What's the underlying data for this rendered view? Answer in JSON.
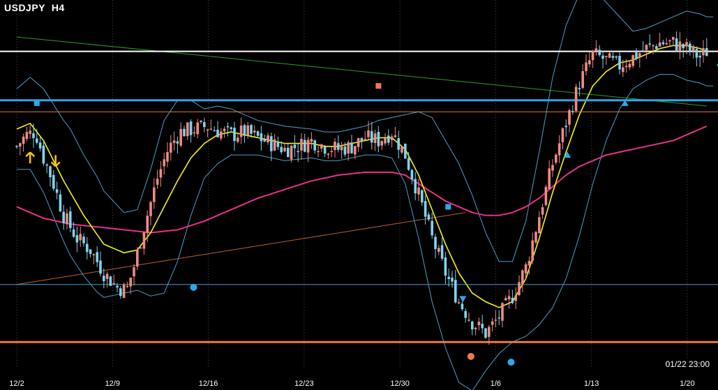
{
  "header": {
    "symbol": "USDJPY",
    "timeframe": "H4"
  },
  "status": {
    "timestamp": "01/22 23:00"
  },
  "colors": {
    "background": "#000000",
    "bull": "#f08a84",
    "bear": "#7fd4ec",
    "upper_line": "#ffffff",
    "blue_line": "#2aa8f0",
    "orange_line": "#f07840",
    "lower_thin_line": "#3aa6d8",
    "ema_fast": "#f5f518",
    "ema_slow": "#e8308a",
    "bands": "#4aa0c8",
    "trend_green": "#28a028",
    "trend_orange": "#c06030",
    "arrow_yellow": "#f5c518",
    "arrow_green": "#28d060",
    "marker_blue": "#29a9e8",
    "marker_orange": "#f07850"
  },
  "chart_data": {
    "type": "candlestick",
    "title": "USDJPY H4",
    "x_ticks": [
      "12/2",
      "12/9",
      "12/16",
      "12/23",
      "12/30",
      "1/6",
      "1/13",
      "1/20"
    ],
    "close_path": [
      [
        0.0,
        0.74
      ],
      [
        0.7,
        0.78
      ],
      [
        1.4,
        0.79
      ],
      [
        2.0,
        0.7
      ],
      [
        2.6,
        0.63
      ],
      [
        3.5,
        0.5
      ],
      [
        4.5,
        0.42
      ],
      [
        5.5,
        0.38
      ],
      [
        6.5,
        0.3
      ],
      [
        7.5,
        0.25
      ],
      [
        8.2,
        0.24
      ],
      [
        8.8,
        0.33
      ],
      [
        9.5,
        0.46
      ],
      [
        10.5,
        0.63
      ],
      [
        11.3,
        0.73
      ],
      [
        12.2,
        0.79
      ],
      [
        13.2,
        0.8
      ],
      [
        14.2,
        0.81
      ],
      [
        15.2,
        0.79
      ],
      [
        16.2,
        0.78
      ],
      [
        17.0,
        0.79
      ],
      [
        18.0,
        0.77
      ],
      [
        19.0,
        0.75
      ],
      [
        20.0,
        0.73
      ],
      [
        21.0,
        0.74
      ],
      [
        22.0,
        0.76
      ],
      [
        23.0,
        0.74
      ],
      [
        24.0,
        0.73
      ],
      [
        25.0,
        0.74
      ],
      [
        26.0,
        0.77
      ],
      [
        27.0,
        0.76
      ],
      [
        28.0,
        0.79
      ],
      [
        29.0,
        0.71
      ],
      [
        30.0,
        0.57
      ],
      [
        31.0,
        0.42
      ],
      [
        32.0,
        0.3
      ],
      [
        33.0,
        0.2
      ],
      [
        34.0,
        0.13
      ],
      [
        35.0,
        0.09
      ],
      [
        35.7,
        0.13
      ],
      [
        36.3,
        0.17
      ],
      [
        37.0,
        0.22
      ],
      [
        38.0,
        0.32
      ],
      [
        39.0,
        0.5
      ],
      [
        40.0,
        0.68
      ],
      [
        41.0,
        0.82
      ],
      [
        42.0,
        0.96
      ],
      [
        43.0,
        1.06
      ],
      [
        44.0,
        1.04
      ],
      [
        45.0,
        1.02
      ],
      [
        46.0,
        1.05
      ],
      [
        47.0,
        1.08
      ],
      [
        48.0,
        1.1
      ],
      [
        49.0,
        1.1
      ],
      [
        50.0,
        1.08
      ],
      [
        51.0,
        1.05
      ],
      [
        51.5,
        1.07
      ]
    ],
    "ema_fast_path": [
      [
        0.0,
        0.8
      ],
      [
        1.0,
        0.82
      ],
      [
        2.0,
        0.76
      ],
      [
        3.5,
        0.62
      ],
      [
        5.0,
        0.5
      ],
      [
        6.5,
        0.4
      ],
      [
        8.0,
        0.37
      ],
      [
        9.0,
        0.38
      ],
      [
        10.0,
        0.44
      ],
      [
        11.0,
        0.53
      ],
      [
        12.0,
        0.62
      ],
      [
        13.0,
        0.7
      ],
      [
        14.0,
        0.75
      ],
      [
        15.0,
        0.78
      ],
      [
        16.0,
        0.79
      ],
      [
        17.0,
        0.78
      ],
      [
        18.0,
        0.77
      ],
      [
        19.0,
        0.76
      ],
      [
        20.0,
        0.75
      ],
      [
        21.0,
        0.75
      ],
      [
        22.0,
        0.75
      ],
      [
        23.0,
        0.74
      ],
      [
        24.0,
        0.74
      ],
      [
        25.0,
        0.75
      ],
      [
        26.0,
        0.76
      ],
      [
        27.0,
        0.77
      ],
      [
        28.0,
        0.77
      ],
      [
        29.0,
        0.73
      ],
      [
        30.0,
        0.64
      ],
      [
        31.0,
        0.52
      ],
      [
        32.0,
        0.4
      ],
      [
        33.0,
        0.3
      ],
      [
        34.0,
        0.23
      ],
      [
        35.0,
        0.2
      ],
      [
        36.0,
        0.18
      ],
      [
        37.0,
        0.2
      ],
      [
        38.0,
        0.28
      ],
      [
        39.0,
        0.42
      ],
      [
        40.0,
        0.58
      ],
      [
        41.0,
        0.72
      ],
      [
        42.0,
        0.85
      ],
      [
        43.0,
        0.95
      ],
      [
        44.0,
        1.0
      ],
      [
        45.0,
        1.03
      ],
      [
        46.0,
        1.04
      ],
      [
        47.0,
        1.06
      ],
      [
        48.0,
        1.08
      ],
      [
        49.0,
        1.09
      ],
      [
        50.0,
        1.09
      ],
      [
        51.0,
        1.08
      ],
      [
        51.5,
        1.07
      ]
    ],
    "ema_slow_path": [
      [
        0.0,
        0.53
      ],
      [
        2.0,
        0.49
      ],
      [
        4.0,
        0.47
      ],
      [
        6.0,
        0.46
      ],
      [
        8.0,
        0.45
      ],
      [
        10.0,
        0.44
      ],
      [
        12.0,
        0.45
      ],
      [
        14.0,
        0.48
      ],
      [
        16.0,
        0.52
      ],
      [
        18.0,
        0.56
      ],
      [
        20.0,
        0.59
      ],
      [
        22.0,
        0.62
      ],
      [
        24.0,
        0.64
      ],
      [
        26.0,
        0.65
      ],
      [
        28.0,
        0.65
      ],
      [
        29.0,
        0.64
      ],
      [
        30.0,
        0.61
      ],
      [
        31.0,
        0.58
      ],
      [
        32.0,
        0.55
      ],
      [
        33.0,
        0.53
      ],
      [
        34.0,
        0.51
      ],
      [
        35.0,
        0.5
      ],
      [
        36.0,
        0.5
      ],
      [
        37.0,
        0.51
      ],
      [
        38.0,
        0.53
      ],
      [
        39.0,
        0.56
      ],
      [
        40.0,
        0.6
      ],
      [
        41.0,
        0.64
      ],
      [
        42.0,
        0.67
      ],
      [
        43.0,
        0.69
      ],
      [
        44.0,
        0.71
      ],
      [
        45.0,
        0.72
      ],
      [
        46.0,
        0.73
      ],
      [
        47.0,
        0.74
      ],
      [
        48.0,
        0.75
      ],
      [
        49.0,
        0.76
      ],
      [
        50.0,
        0.78
      ],
      [
        51.0,
        0.8
      ],
      [
        51.5,
        0.81
      ]
    ],
    "band_width_path": [
      [
        0.0,
        0.14
      ],
      [
        2.0,
        0.18
      ],
      [
        4.0,
        0.22
      ],
      [
        6.0,
        0.2
      ],
      [
        8.0,
        0.14
      ],
      [
        9.0,
        0.14
      ],
      [
        10.0,
        0.22
      ],
      [
        11.0,
        0.3
      ],
      [
        12.0,
        0.28
      ],
      [
        13.0,
        0.2
      ],
      [
        14.0,
        0.12
      ],
      [
        16.0,
        0.08
      ],
      [
        18.0,
        0.06
      ],
      [
        20.0,
        0.06
      ],
      [
        22.0,
        0.05
      ],
      [
        24.0,
        0.05
      ],
      [
        26.0,
        0.05
      ],
      [
        28.0,
        0.07
      ],
      [
        29.0,
        0.12
      ],
      [
        30.0,
        0.22
      ],
      [
        31.0,
        0.32
      ],
      [
        32.0,
        0.36
      ],
      [
        33.0,
        0.38
      ],
      [
        34.0,
        0.34
      ],
      [
        35.0,
        0.24
      ],
      [
        36.0,
        0.16
      ],
      [
        37.0,
        0.14
      ],
      [
        38.0,
        0.2
      ],
      [
        39.0,
        0.3
      ],
      [
        40.0,
        0.4
      ],
      [
        41.0,
        0.44
      ],
      [
        42.0,
        0.42
      ],
      [
        43.0,
        0.34
      ],
      [
        44.0,
        0.24
      ],
      [
        45.0,
        0.16
      ],
      [
        46.0,
        0.1
      ],
      [
        47.0,
        0.09
      ],
      [
        48.0,
        0.09
      ],
      [
        49.0,
        0.1
      ],
      [
        50.0,
        0.12
      ],
      [
        51.5,
        0.12
      ]
    ],
    "levels": [
      {
        "name": "upper-resistance",
        "value": 1.07,
        "color_key": "upper_line",
        "width": 2
      },
      {
        "name": "blue-level",
        "value": 0.9,
        "color_key": "blue_line",
        "width": 3
      },
      {
        "name": "thin-orange-level",
        "value": 0.86,
        "color_key": "orange_line",
        "width": 1
      },
      {
        "name": "thin-blue-level",
        "value": 0.26,
        "color_key": "lower_thin_line",
        "width": 1
      },
      {
        "name": "support-orange-level",
        "value": 0.06,
        "color_key": "orange_line",
        "width": 3
      }
    ],
    "trendlines": [
      {
        "name": "green-trendline",
        "from": [
          0,
          1.12
        ],
        "to": [
          51.5,
          0.88
        ],
        "color_key": "trend_green"
      },
      {
        "name": "orange-trendline",
        "from": [
          0,
          0.26
        ],
        "to": [
          33.5,
          0.51
        ],
        "color_key": "trend_orange"
      }
    ],
    "markers": [
      {
        "name": "yellow-up-arrow",
        "shape": "up-arrow",
        "x": 1.0,
        "y": 0.7,
        "color_key": "arrow_yellow"
      },
      {
        "name": "yellow-down-arrow",
        "shape": "down-arrow",
        "x": 2.9,
        "y": 0.69,
        "color_key": "arrow_yellow"
      },
      {
        "name": "blue-square-marker",
        "shape": "square",
        "x": 1.5,
        "y": 0.89,
        "color_key": "marker_blue"
      },
      {
        "name": "orange-square-marker",
        "shape": "square",
        "x": 27.0,
        "y": 0.95,
        "color_key": "marker_orange"
      },
      {
        "name": "blue-square-marker-2",
        "shape": "square",
        "x": 32.2,
        "y": 0.53,
        "color_key": "marker_blue"
      },
      {
        "name": "blue-down-triangle",
        "shape": "down-triangle",
        "x": 33.3,
        "y": 0.21,
        "color_key": "marker_blue"
      },
      {
        "name": "blue-up-triangle",
        "shape": "up-triangle",
        "x": 41.1,
        "y": 0.71,
        "color_key": "marker_blue"
      },
      {
        "name": "blue-up-triangle-2",
        "shape": "up-triangle",
        "x": 45.4,
        "y": 0.89,
        "color_key": "marker_blue"
      },
      {
        "name": "blue-circle-marker",
        "shape": "circle",
        "x": 13.2,
        "y": 0.25,
        "color_key": "marker_blue"
      },
      {
        "name": "orange-circle-marker",
        "shape": "circle",
        "x": 33.9,
        "y": 0.01,
        "color_key": "marker_orange"
      },
      {
        "name": "blue-circle-marker-2",
        "shape": "circle",
        "x": 36.9,
        "y": -0.01,
        "color_key": "marker_blue"
      },
      {
        "name": "green-down-arrow",
        "shape": "down-arrow",
        "x": 52.6,
        "y": 1.03,
        "color_key": "arrow_green"
      }
    ],
    "grid": "vertical dotted"
  }
}
